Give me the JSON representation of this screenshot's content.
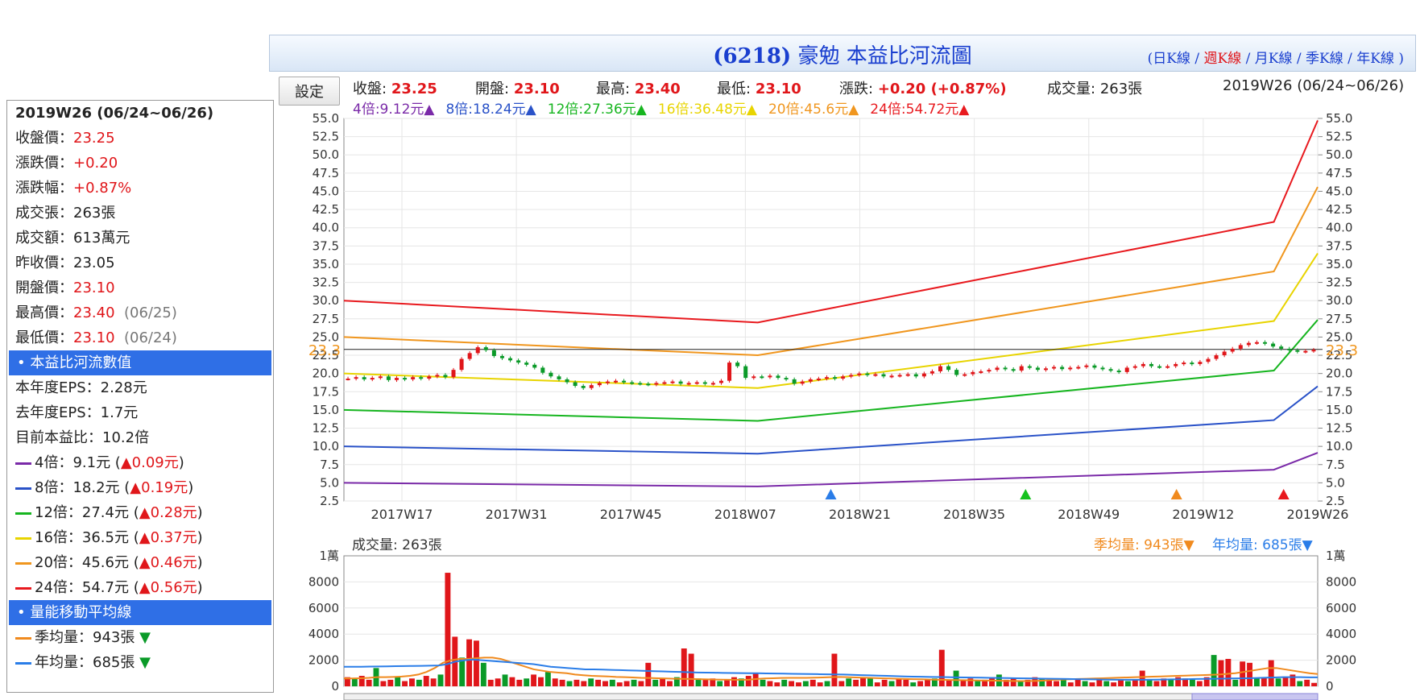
{
  "title": {
    "code": "(6218)",
    "name": "豪勉 本益比河流圖"
  },
  "period_links": {
    "open": "(",
    "items": [
      {
        "label": "日K線",
        "current": false
      },
      {
        "label": "週K線",
        "current": true
      },
      {
        "label": "月K線",
        "current": false
      },
      {
        "label": "季K線",
        "current": false
      },
      {
        "label": "年K線",
        "current": false
      }
    ],
    "sep": " / ",
    "close": " )"
  },
  "settings_button": "設定",
  "quote": {
    "close_label": "收盤:",
    "close": "23.25",
    "open_label": "開盤:",
    "open": "23.10",
    "high_label": "最高:",
    "high": "23.40",
    "low_label": "最低:",
    "low": "23.10",
    "change_label": "漲跌:",
    "change": "+0.20  (+0.87%)",
    "volume_label": "成交量:",
    "volume": "263張",
    "period": "2019W26 (06/24~06/26)"
  },
  "multiples_header": [
    {
      "text": "4倍:9.12元▲",
      "color": "#7a2aa8"
    },
    {
      "text": "8倍:18.24元▲",
      "color": "#2a52c8"
    },
    {
      "text": "12倍:27.36元▲",
      "color": "#16b51f"
    },
    {
      "text": "16倍:36.48元▲",
      "color": "#e8d400"
    },
    {
      "text": "20倍:45.6元▲",
      "color": "#f0961e"
    },
    {
      "text": "24倍:54.72元▲",
      "color": "#e8191e"
    }
  ],
  "sidebar": {
    "heading": "2019W26 (06/24~06/26)",
    "close_label": "收盤價：",
    "close": "23.25",
    "change_label": "漲跌價：",
    "change": "+0.20",
    "pct_label": "漲跌幅：",
    "pct": "+0.87%",
    "vol_label": "成交張：",
    "vol": "263張",
    "amount_label": "成交額：",
    "amount": "613萬元",
    "prev_label": "昨收價：",
    "prev": "23.05",
    "open_label": "開盤價：",
    "open": "23.10",
    "high_label": "最高價：",
    "high": "23.40",
    "high_date": "(06/25)",
    "low_label": "最低價：",
    "low": "23.10",
    "low_date": "(06/24)",
    "section1": "• 本益比河流數值",
    "eps_this_label": "本年度EPS：",
    "eps_this": "2.28元",
    "eps_last_label": "去年度EPS：",
    "eps_last": "1.7元",
    "pe_label": "目前本益比：",
    "pe": "10.2倍",
    "rivers": [
      {
        "label": "4倍：9.1元 (",
        "delta": "▲0.09元",
        "color": "#7a2aa8"
      },
      {
        "label": "8倍：18.2元 (",
        "delta": "▲0.19元",
        "color": "#2a52c8"
      },
      {
        "label": "12倍：27.4元 (",
        "delta": "▲0.28元",
        "color": "#16b51f"
      },
      {
        "label": "16倍：36.5元 (",
        "delta": "▲0.37元",
        "color": "#e8d400"
      },
      {
        "label": "20倍：45.6元 (",
        "delta": "▲0.46元",
        "color": "#f0961e"
      },
      {
        "label": "24倍：54.7元 (",
        "delta": "▲0.56元",
        "color": "#e8191e"
      }
    ],
    "close_paren": ")",
    "section2": "• 量能移動平均線",
    "ma_season_label": "季均量：943張",
    "ma_year_label": "年均量：685張",
    "ma_arrow": "▼"
  },
  "chart_data": [
    {
      "type": "line",
      "name": "本益比河流圖",
      "x_ticks": [
        "2017W17",
        "2017W31",
        "2017W45",
        "2018W07",
        "2018W21",
        "2018W35",
        "2018W49",
        "2019W12",
        "2019W26"
      ],
      "y_ticks": [
        "2.5",
        "5.0",
        "7.5",
        "10.0",
        "12.5",
        "15.0",
        "17.5",
        "20.0",
        "22.5",
        "25.0",
        "27.5",
        "30.0",
        "32.5",
        "35.0",
        "37.5",
        "40.0",
        "42.5",
        "45.0",
        "47.5",
        "50.0",
        "52.5",
        "55.0"
      ],
      "ylim": [
        2.5,
        55
      ],
      "current_price_label": "23.3",
      "current_price": 23.3,
      "series": [
        {
          "name": "4倍",
          "color": "#7a2aa8",
          "x": [
            0,
            0.425,
            0.955,
            1.0
          ],
          "values": [
            5.0,
            4.5,
            6.8,
            9.12
          ]
        },
        {
          "name": "8倍",
          "color": "#2a52c8",
          "x": [
            0,
            0.425,
            0.955,
            1.0
          ],
          "values": [
            10.0,
            9.0,
            13.6,
            18.24
          ]
        },
        {
          "name": "12倍",
          "color": "#16b51f",
          "x": [
            0,
            0.425,
            0.955,
            1.0
          ],
          "values": [
            15.0,
            13.5,
            20.4,
            27.36
          ]
        },
        {
          "name": "16倍",
          "color": "#e8d400",
          "x": [
            0,
            0.425,
            0.955,
            1.0
          ],
          "values": [
            20.0,
            18.0,
            27.2,
            36.48
          ]
        },
        {
          "name": "20倍",
          "color": "#f0961e",
          "x": [
            0,
            0.425,
            0.955,
            1.0
          ],
          "values": [
            25.0,
            22.5,
            34.0,
            45.6
          ]
        },
        {
          "name": "24倍",
          "color": "#e8191e",
          "x": [
            0,
            0.425,
            0.955,
            1.0
          ],
          "values": [
            30.0,
            27.0,
            40.8,
            54.72
          ]
        }
      ],
      "price_weekly": [
        19.3,
        19.5,
        19.2,
        19.4,
        19.6,
        19.1,
        19.4,
        19.2,
        19.5,
        19.3,
        19.6,
        19.8,
        19.5,
        20.5,
        22.0,
        22.8,
        23.6,
        23.2,
        22.4,
        22.1,
        21.8,
        21.5,
        21.2,
        20.8,
        20.1,
        19.6,
        19.2,
        18.8,
        18.3,
        18.0,
        18.4,
        18.7,
        18.9,
        19.0,
        18.8,
        18.7,
        18.6,
        18.5,
        18.7,
        18.8,
        18.9,
        18.6,
        18.7,
        18.8,
        18.6,
        18.7,
        19.0,
        21.5,
        21.0,
        19.4,
        19.6,
        19.5,
        19.7,
        19.4,
        19.2,
        18.6,
        18.9,
        19.2,
        19.3,
        19.5,
        19.3,
        19.6,
        19.8,
        20.0,
        19.8,
        19.9,
        19.6,
        19.7,
        19.8,
        19.9,
        19.6,
        20.0,
        20.3,
        21.0,
        20.5,
        19.8,
        19.9,
        20.2,
        20.3,
        20.5,
        20.8,
        20.6,
        20.4,
        21.0,
        20.8,
        20.5,
        20.7,
        20.9,
        20.6,
        20.8,
        20.9,
        21.1,
        20.8,
        20.6,
        20.4,
        20.2,
        20.8,
        21.0,
        21.3,
        21.0,
        20.9,
        21.0,
        21.3,
        21.5,
        21.3,
        21.6,
        22.0,
        22.5,
        23.0,
        23.4,
        23.9,
        24.2,
        24.3,
        24.1,
        23.7,
        23.4,
        23.2,
        23.0,
        23.1,
        23.25
      ],
      "markers": [
        {
          "x": 0.5,
          "color": "#2a7de8"
        },
        {
          "x": 0.7,
          "color": "#16c21f"
        },
        {
          "x": 0.855,
          "color": "#f08a1e"
        },
        {
          "x": 0.965,
          "color": "#e8191e"
        }
      ]
    },
    {
      "type": "bar",
      "name": "成交量",
      "title": "成交量: 263張",
      "unit_label": "1萬",
      "y_ticks": [
        "0",
        "2000",
        "4000",
        "6000",
        "8000"
      ],
      "ylim": [
        0,
        10000
      ],
      "legend": [
        {
          "text": "季均量: 943張▼",
          "color": "#f08a1e"
        },
        {
          "text": "年均量: 685張▼",
          "color": "#2a7de8"
        }
      ],
      "volume": [
        700,
        600,
        800,
        500,
        1400,
        400,
        500,
        700,
        400,
        600,
        500,
        800,
        600,
        900,
        8700,
        3800,
        2200,
        3600,
        3500,
        1800,
        500,
        600,
        900,
        700,
        500,
        600,
        900,
        700,
        1100,
        600,
        500,
        400,
        500,
        400,
        600,
        500,
        400,
        500,
        300,
        400,
        500,
        400,
        1800,
        500,
        600,
        400,
        700,
        2900,
        2500,
        600,
        500,
        600,
        400,
        500,
        700,
        600,
        800,
        1000,
        500,
        400,
        300,
        500,
        400,
        300,
        400,
        500,
        300,
        400,
        2500,
        400,
        600,
        500,
        700,
        600,
        300,
        500,
        400,
        600,
        500,
        300,
        400,
        500,
        600,
        2800,
        500,
        1200,
        500,
        600,
        400,
        500,
        700,
        900,
        500,
        600,
        400,
        500,
        700,
        600,
        500,
        400,
        600,
        300,
        500,
        400,
        300,
        500,
        400,
        300,
        500,
        400,
        500,
        1200,
        500,
        400,
        600,
        500,
        700,
        600,
        500,
        400,
        700,
        2400,
        2000,
        2100,
        500,
        1900,
        1800,
        600,
        700,
        2000,
        600,
        700,
        900,
        400,
        500,
        263
      ],
      "ma_season": [
        600,
        600,
        620,
        650,
        700,
        700,
        720,
        750,
        800,
        900,
        1100,
        1400,
        1800,
        2000,
        2100,
        2100,
        2150,
        2200,
        2200,
        2100,
        1900,
        1700,
        1500,
        1300,
        1200,
        1100,
        1050,
        1000,
        900,
        850,
        800,
        780,
        760,
        720,
        700,
        680,
        650,
        640,
        620,
        600,
        580,
        570,
        560,
        550,
        530,
        520,
        510,
        500,
        500,
        500,
        560,
        600,
        620,
        640,
        650,
        650,
        650,
        660,
        680,
        700,
        720,
        700,
        680,
        660,
        640,
        620,
        600,
        580,
        560,
        550,
        540,
        520,
        500,
        490,
        480,
        470,
        460,
        450,
        440,
        430,
        420,
        410,
        400,
        400,
        420,
        450,
        500,
        520,
        540,
        560,
        580,
        600,
        620,
        640,
        660,
        680,
        700,
        720,
        740,
        760,
        780,
        800,
        820,
        840,
        860,
        880,
        900,
        950,
        1000,
        1100,
        1200,
        1300,
        1400,
        1400,
        1300,
        1200,
        1100,
        1000,
        943
      ],
      "ma_year": [
        1500,
        1500,
        1500,
        1510,
        1520,
        1530,
        1540,
        1550,
        1560,
        1570,
        1580,
        1600,
        1700,
        1900,
        2000,
        2050,
        2000,
        1950,
        1900,
        1850,
        1800,
        1750,
        1700,
        1600,
        1500,
        1450,
        1400,
        1350,
        1300,
        1300,
        1280,
        1260,
        1240,
        1220,
        1200,
        1180,
        1160,
        1140,
        1120,
        1100,
        1080,
        1060,
        1050,
        1040,
        1030,
        1020,
        1010,
        1000,
        1000,
        990,
        980,
        970,
        960,
        950,
        940,
        930,
        920,
        910,
        900,
        880,
        860,
        840,
        820,
        800,
        780,
        760,
        740,
        730,
        720,
        710,
        700,
        690,
        680,
        670,
        660,
        650,
        640,
        630,
        620,
        610,
        600,
        590,
        580,
        570,
        560,
        550,
        540,
        530,
        520,
        510,
        500,
        500,
        500,
        500,
        510,
        520,
        530,
        540,
        550,
        560,
        570,
        580,
        590,
        600,
        610,
        620,
        640,
        660,
        680,
        700,
        700,
        700,
        690,
        685
      ]
    }
  ]
}
